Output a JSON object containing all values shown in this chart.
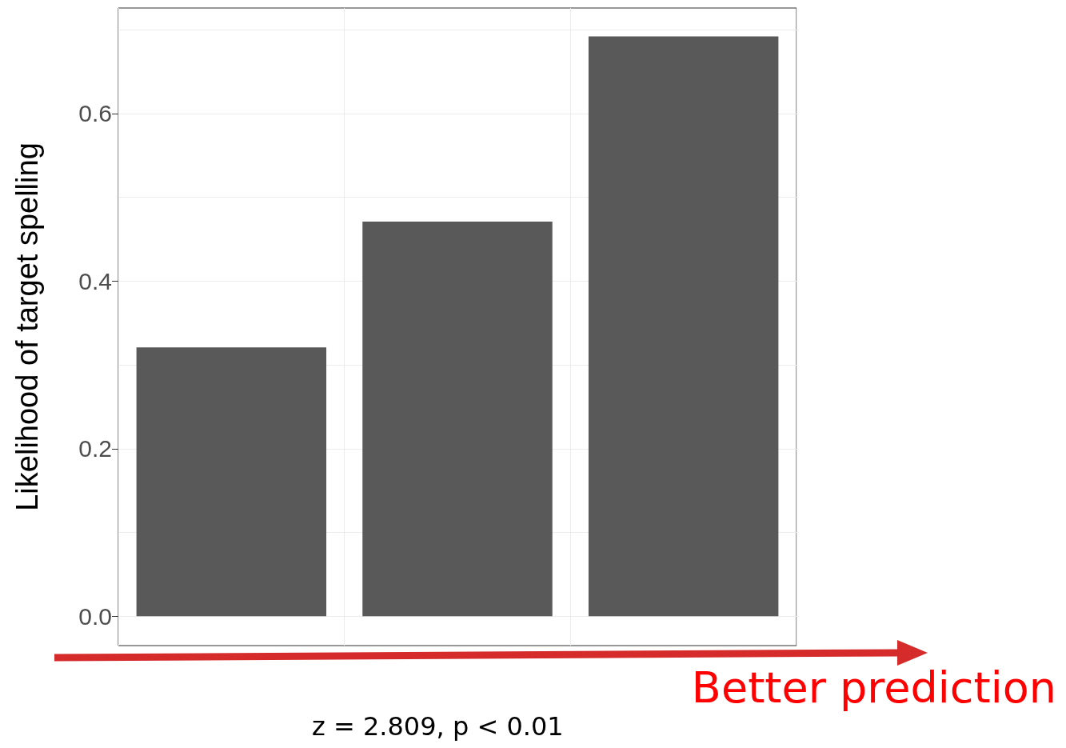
{
  "chart_data": {
    "type": "bar",
    "ylabel": "Likelihood of target spelling",
    "categories": [
      null,
      null,
      null
    ],
    "values": [
      0.321,
      0.471,
      0.692
    ],
    "color": "#595959",
    "ylim": [
      -0.035,
      0.726
    ],
    "yticks": [
      {
        "value": 0,
        "label": "0.0"
      },
      {
        "value": 0.2,
        "label": "0.2"
      },
      {
        "value": 0.4,
        "label": "0.4"
      },
      {
        "value": 0.6,
        "label": "0.6"
      }
    ],
    "grid": true,
    "annotations": [
      "Better prediction",
      "z = 2.809, p < 0.01"
    ]
  }
}
